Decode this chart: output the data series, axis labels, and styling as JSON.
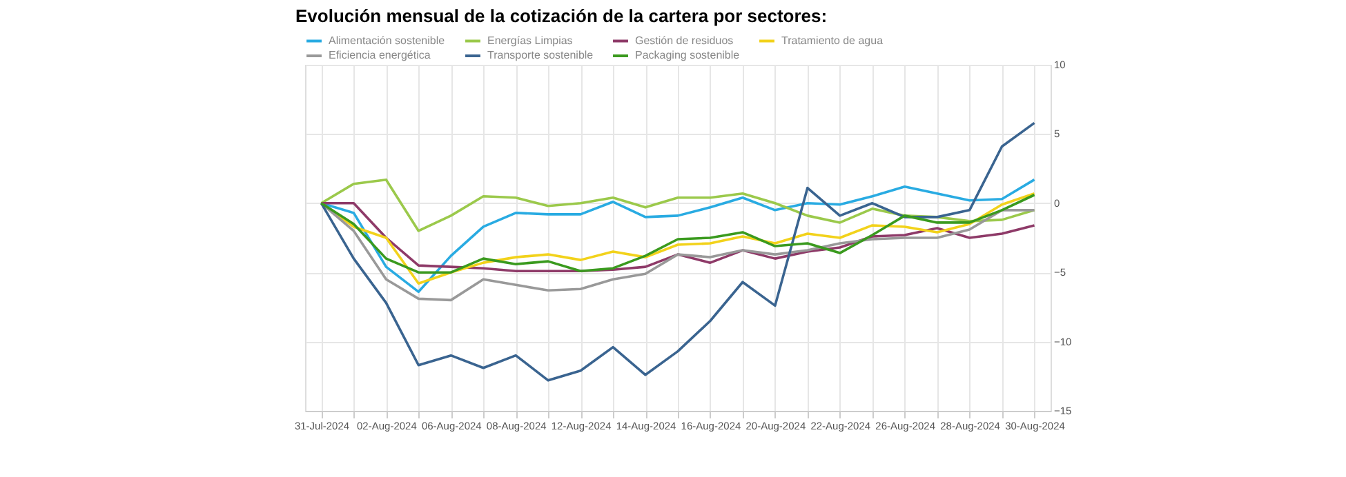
{
  "chart_data": {
    "type": "line",
    "title": "Evolución mensual de la cotización de la cartera por sectores:",
    "categories": [
      "31-Jul-2024",
      null,
      "02-Aug-2024",
      null,
      "06-Aug-2024",
      null,
      "08-Aug-2024",
      null,
      "12-Aug-2024",
      null,
      "14-Aug-2024",
      null,
      "16-Aug-2024",
      null,
      "20-Aug-2024",
      null,
      "22-Aug-2024",
      null,
      "26-Aug-2024",
      null,
      "28-Aug-2024",
      null,
      "30-Aug-2024"
    ],
    "series": [
      {
        "name": "Alimentación sostenible",
        "color": "#29abe2",
        "values": [
          0,
          -0.7,
          -4.6,
          -6.4,
          -3.8,
          -1.7,
          -0.7,
          -0.8,
          -0.8,
          0.1,
          -1.0,
          -0.9,
          -0.3,
          0.4,
          -0.5,
          0,
          -0.1,
          0.5,
          1.2,
          0.7,
          0.2,
          0.3,
          1.7
        ]
      },
      {
        "name": "Energías Limpias",
        "color": "#9bc94b",
        "values": [
          0,
          1.4,
          1.7,
          -2.0,
          -0.9,
          0.5,
          0.4,
          -0.2,
          0,
          0.4,
          -0.3,
          0.4,
          0.4,
          0.7,
          0,
          -0.9,
          -1.4,
          -0.4,
          -0.9,
          -1.0,
          -1.3,
          -1.2,
          -0.5
        ]
      },
      {
        "name": "Gestión de residuos",
        "color": "#8e3a68",
        "values": [
          0,
          0,
          -2.5,
          -4.5,
          -4.6,
          -4.7,
          -4.9,
          -4.9,
          -4.9,
          -4.8,
          -4.6,
          -3.7,
          -4.3,
          -3.4,
          -4.0,
          -3.5,
          -3.2,
          -2.4,
          -2.3,
          -1.8,
          -2.5,
          -2.2,
          -1.6
        ]
      },
      {
        "name": "Tratamiento de agua",
        "color": "#f2d21b",
        "values": [
          0,
          -1.7,
          -2.5,
          -5.8,
          -5.0,
          -4.3,
          -3.9,
          -3.7,
          -4.1,
          -3.5,
          -3.9,
          -3.0,
          -2.9,
          -2.4,
          -2.9,
          -2.2,
          -2.5,
          -1.6,
          -1.7,
          -2.1,
          -1.5,
          -0.1,
          0.7
        ]
      },
      {
        "name": "Eficiencia energética",
        "color": "#999999",
        "values": [
          0,
          -2.0,
          -5.5,
          -6.9,
          -7.0,
          -5.5,
          -5.9,
          -6.3,
          -6.2,
          -5.5,
          -5.1,
          -3.7,
          -3.9,
          -3.4,
          -3.7,
          -3.4,
          -2.9,
          -2.6,
          -2.5,
          -2.5,
          -1.9,
          -0.5,
          -0.5
        ]
      },
      {
        "name": "Transporte sostenible",
        "color": "#3a6490",
        "values": [
          0,
          -4.0,
          -7.2,
          -11.7,
          -11.0,
          -11.9,
          -11.0,
          -12.8,
          -12.1,
          -10.4,
          -12.4,
          -10.7,
          -8.5,
          -5.7,
          -7.4,
          1.1,
          -0.9,
          0,
          -1.0,
          -1.0,
          -0.5,
          4.1,
          5.8
        ]
      },
      {
        "name": "Packaging sostenible",
        "color": "#3a9a1e",
        "values": [
          0,
          -1.5,
          -4.0,
          -5.0,
          -5.0,
          -4.0,
          -4.4,
          -4.2,
          -4.9,
          -4.7,
          -3.8,
          -2.6,
          -2.5,
          -2.1,
          -3.1,
          -2.9,
          -3.6,
          -2.3,
          -0.9,
          -1.4,
          -1.4,
          -0.5,
          0.6
        ]
      }
    ],
    "ylim": [
      -15,
      10
    ],
    "yticks": [
      -15,
      -10,
      -5,
      0,
      5,
      10
    ],
    "grid": true,
    "legend": "top",
    "marker": "none",
    "line_style": "solid"
  }
}
